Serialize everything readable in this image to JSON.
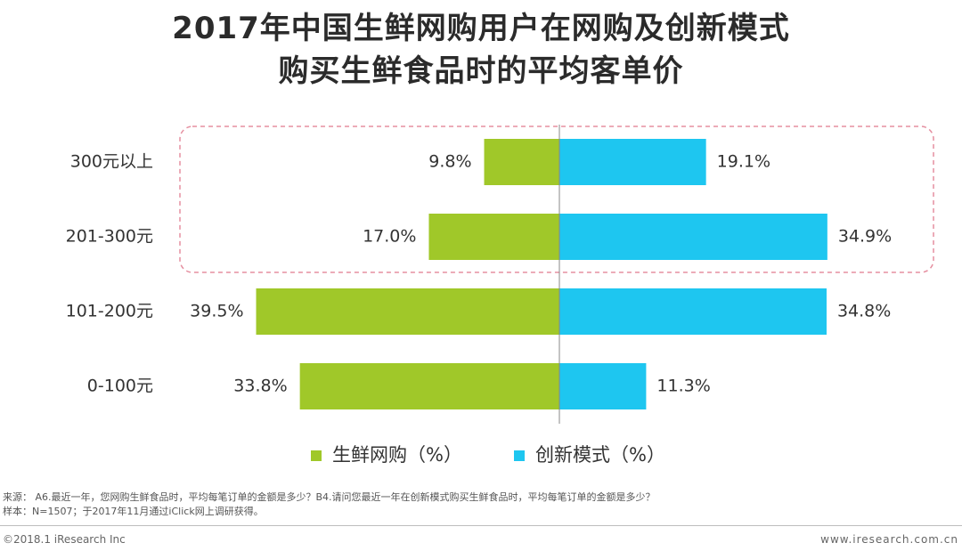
{
  "title": {
    "line1": "2017年中国生鲜网购用户在网购及创新模式",
    "line2": "购买生鲜食品时的平均客单价"
  },
  "colors": {
    "green": "#a0c829",
    "blue": "#1ec6f0",
    "highlight_border": "#e58fa0",
    "axis": "#888888"
  },
  "chart_data": {
    "type": "bar",
    "orientation": "horizontal-diverging",
    "categories": [
      "300元以上",
      "201-300元",
      "101-200元",
      "0-100元"
    ],
    "series": [
      {
        "name": "生鲜网购（%）",
        "color": "#a0c829",
        "values": [
          9.8,
          17.0,
          39.5,
          33.8
        ],
        "labels": [
          "9.8%",
          "17.0%",
          "39.5%",
          "33.8%"
        ]
      },
      {
        "name": "创新模式（%）",
        "color": "#1ec6f0",
        "values": [
          19.1,
          34.9,
          34.8,
          11.3
        ],
        "labels": [
          "19.1%",
          "34.9%",
          "34.8%",
          "11.3%"
        ]
      }
    ],
    "highlighted_categories": [
      "300元以上",
      "201-300元"
    ],
    "legend_position": "bottom-center",
    "grid": false
  },
  "notes": {
    "source": "来源： A6.最近一年，您网购生鲜食品时，平均每笔订单的金额是多少？B4.请问您最近一年在创新模式购买生鲜食品时，平均每笔订单的金额是多少？",
    "sample": "样本：N=1507；于2017年11月通过iClick网上调研获得。"
  },
  "footer": {
    "copyright": "©2018.1 iResearch Inc",
    "website": "www.iresearch.com.cn"
  }
}
